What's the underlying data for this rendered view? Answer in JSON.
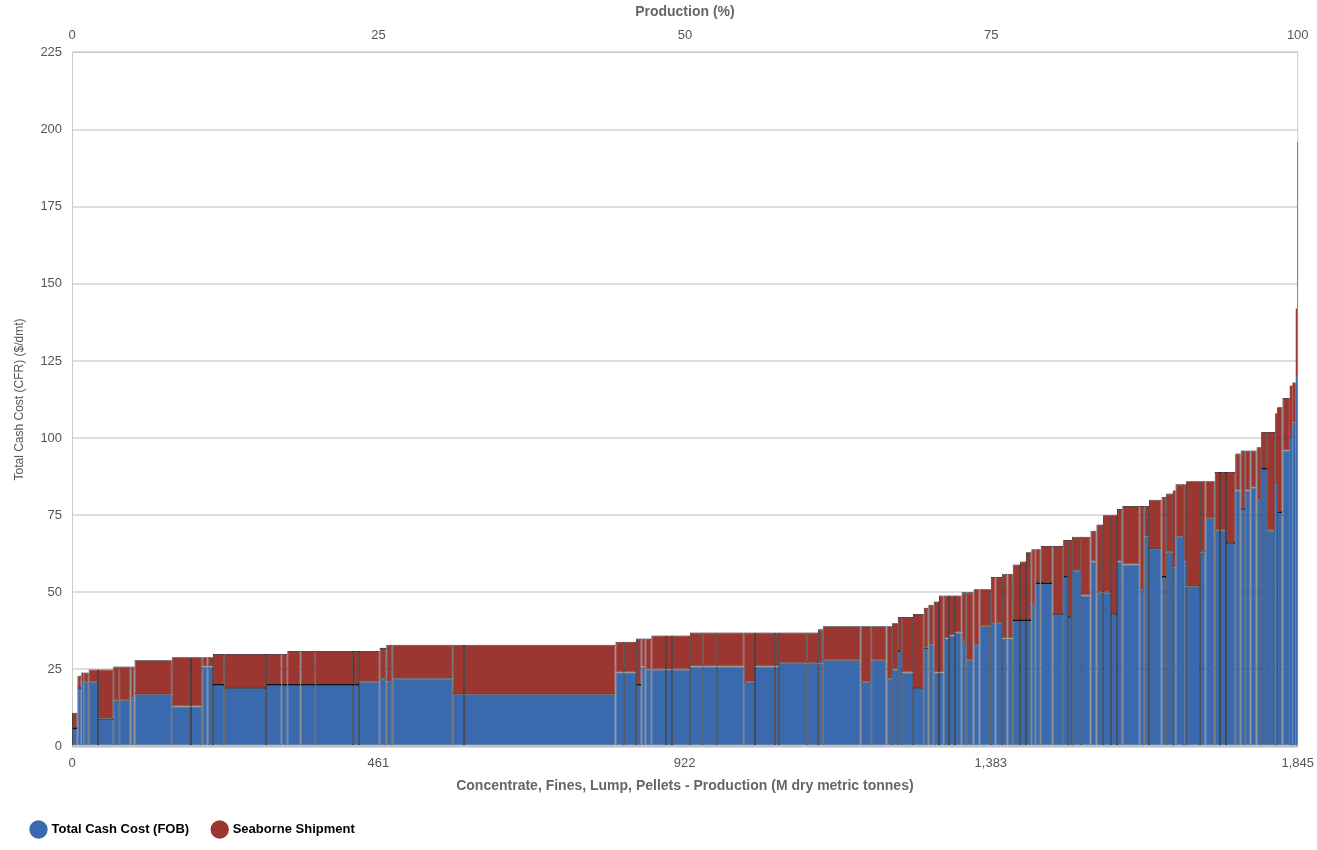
{
  "chart_data": {
    "type": "bar",
    "stacked": true,
    "xlabel": "Concentrate, Fines, Lump, Pellets - Production (M dry metric tonnes)",
    "x2label": "Production (%)",
    "ylabel": "Total Cash Cost (CFR) ($/dmt)",
    "x": [
      4,
      11,
      15.5,
      21,
      32,
      50.5,
      66.5,
      79.5,
      91,
      122,
      164.5,
      187.5,
      200,
      208,
      220.5,
      260.5,
      303.5,
      319.5,
      334,
      355,
      394.5,
      427.5,
      447.5,
      468,
      477.5,
      527.5,
      581.5,
      704,
      824.5,
      840,
      853,
      860,
      867.5,
      883,
      898.5,
      916.5,
      940,
      960.5,
      991,
      1019.5,
      1043,
      1061,
      1085,
      1114.5,
      1126.5,
      1158.5,
      1195,
      1214.5,
      1230,
      1238.5,
      1246,
      1257.5,
      1274,
      1285.5,
      1293,
      1301,
      1308.5,
      1316,
      1324.5,
      1334,
      1342.5,
      1351.5,
      1361.5,
      1374.5,
      1386.5,
      1395,
      1404,
      1412,
      1421.5,
      1431.5,
      1440,
      1447,
      1454,
      1467,
      1484,
      1495.5,
      1502,
      1512,
      1526,
      1537.5,
      1547,
      1558,
      1568.5,
      1577,
      1594,
      1610.5,
      1617.5,
      1630.5,
      1643.5,
      1652,
      1659,
      1667.5,
      1675.5,
      1687.5,
      1702,
      1713,
      1724,
      1732.5,
      1744,
      1755,
      1762.5,
      1770,
      1778.5,
      1786.5,
      1794.5,
      1805,
      1812.5,
      1818,
      1827.5,
      1835,
      1839.5,
      1843,
      1844.5
    ],
    "series": [
      {
        "name": "Total Cash Cost (FOB)",
        "color": "#3a6aad",
        "values": [
          6,
          19,
          21,
          21,
          21,
          9,
          15,
          15,
          16,
          17,
          13,
          13,
          26,
          26,
          20,
          19,
          20,
          20,
          20,
          20,
          20,
          20,
          21,
          22,
          21,
          22,
          17,
          17,
          24,
          24,
          20,
          26,
          25,
          25,
          25,
          25,
          26,
          26,
          26,
          21,
          26,
          26,
          27,
          27,
          27,
          28,
          21,
          28,
          22,
          25,
          31,
          24,
          19,
          32,
          33,
          24,
          24,
          35,
          36,
          37,
          34,
          28,
          33,
          39,
          40,
          40,
          35,
          35,
          41,
          41,
          41,
          46,
          53,
          53,
          43,
          55,
          42,
          57,
          49,
          60,
          50,
          50,
          43,
          60,
          59,
          51,
          68,
          64,
          55,
          63,
          58,
          68,
          60,
          52,
          63,
          74,
          70,
          70,
          66,
          83,
          77,
          83,
          84,
          80,
          90,
          70,
          85,
          76,
          96,
          100,
          105,
          120,
          150
        ]
      },
      {
        "name": "Seaborne Shipment",
        "color": "#9b3631",
        "values": [
          5,
          4,
          3,
          3,
          4,
          16,
          11,
          11,
          10,
          11,
          16,
          16,
          3,
          3,
          10,
          11,
          10,
          10,
          11,
          11,
          11,
          11,
          10,
          10,
          12,
          11,
          16,
          16,
          10,
          10,
          15,
          9,
          10,
          11,
          11,
          11,
          11,
          11,
          11,
          16,
          11,
          11,
          10,
          10,
          11,
          11,
          18,
          11,
          17,
          15,
          11,
          18,
          24,
          13,
          13,
          23,
          25,
          14,
          13,
          12,
          16,
          22,
          18,
          12,
          15,
          15,
          21,
          21,
          18,
          19,
          22,
          18,
          11,
          12,
          22,
          12,
          25,
          11,
          19,
          10,
          22,
          25,
          32,
          17,
          19,
          27,
          10,
          16,
          26,
          19,
          25,
          17,
          25,
          34,
          23,
          12,
          19,
          19,
          23,
          12,
          19,
          13,
          12,
          17,
          12,
          32,
          23,
          34,
          17,
          17,
          13,
          22,
          46
        ]
      }
    ],
    "xlim": [
      0,
      1845
    ],
    "xticks": [
      0,
      461,
      922,
      {
        "value": 1383,
        "label": "1,383"
      },
      {
        "value": 1845,
        "label": "1,845"
      }
    ],
    "x2lim": [
      0,
      100
    ],
    "x2ticks": [
      0,
      25,
      50,
      75,
      100
    ],
    "ylim": [
      0,
      225
    ],
    "yticks": [
      0,
      25,
      50,
      75,
      100,
      125,
      150,
      175,
      200,
      225
    ],
    "grid": "y",
    "legend": "bottom left"
  }
}
